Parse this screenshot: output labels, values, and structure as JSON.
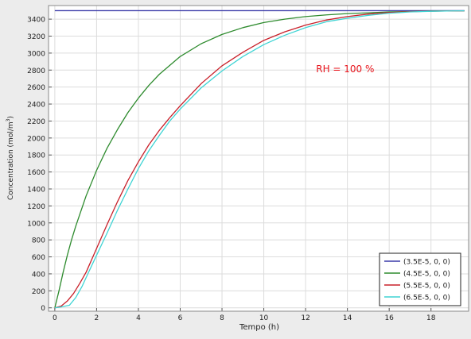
{
  "chart_data": {
    "type": "line",
    "title": "",
    "xlabel": "Tempo (h)",
    "ylabel": "Concentration (mol/m3)",
    "ylabel_base": "Concentration (mol/m",
    "ylabel_sup": "3",
    "ylabel_close": ")",
    "xlim": [
      -0.3,
      19.8
    ],
    "ylim": [
      -40,
      3560
    ],
    "xticks": [
      0,
      2,
      4,
      6,
      8,
      10,
      12,
      14,
      16,
      18
    ],
    "yticks": [
      0,
      200,
      400,
      600,
      800,
      1000,
      1200,
      1400,
      1600,
      1800,
      2000,
      2200,
      2400,
      2600,
      2800,
      3000,
      3200,
      3400
    ],
    "grid": true,
    "legend_position": "bottom-right",
    "annotation": {
      "text": "RH = 100 %",
      "x": 12.5,
      "y": 2775,
      "color": "#e8141c"
    },
    "series": [
      {
        "name": "(3.5E-5,  0,  0)",
        "color": "#3a3aa8",
        "x": [
          0,
          2,
          4,
          6,
          8,
          10,
          12,
          14,
          16,
          18,
          19.6
        ],
        "y": [
          3500,
          3500,
          3500,
          3500,
          3500,
          3500,
          3500,
          3500,
          3500,
          3500,
          3500
        ]
      },
      {
        "name": "(4.5E-5,  0,  0)",
        "color": "#2e8b2e",
        "x": [
          0,
          0.2,
          0.4,
          0.6,
          0.8,
          1,
          1.5,
          2,
          2.5,
          3,
          3.5,
          4,
          4.5,
          5,
          6,
          7,
          8,
          9,
          10,
          11,
          12,
          13,
          14,
          15,
          16,
          17,
          18,
          19,
          19.6
        ],
        "y": [
          0,
          200,
          420,
          620,
          800,
          960,
          1320,
          1620,
          1880,
          2100,
          2300,
          2470,
          2620,
          2750,
          2960,
          3110,
          3220,
          3300,
          3360,
          3400,
          3430,
          3450,
          3465,
          3475,
          3485,
          3490,
          3495,
          3497,
          3498
        ]
      },
      {
        "name": "(5.5E-5,  0,  0)",
        "color": "#c8202a",
        "x": [
          0,
          0.3,
          0.6,
          0.9,
          1.2,
          1.5,
          2,
          2.5,
          3,
          3.5,
          4,
          4.5,
          5,
          5.5,
          6,
          7,
          8,
          9,
          10,
          11,
          12,
          13,
          14,
          15,
          16,
          17,
          18,
          19,
          19.6
        ],
        "y": [
          0,
          20,
          80,
          170,
          290,
          420,
          700,
          980,
          1250,
          1500,
          1720,
          1920,
          2090,
          2240,
          2380,
          2640,
          2850,
          3010,
          3150,
          3250,
          3330,
          3390,
          3430,
          3460,
          3478,
          3488,
          3494,
          3497,
          3498
        ]
      },
      {
        "name": "(6.5E-5,  0,  0)",
        "color": "#3fd4d4",
        "x": [
          0,
          0.3,
          0.7,
          1,
          1.3,
          1.6,
          2,
          2.5,
          3,
          3.5,
          4,
          4.5,
          5,
          5.5,
          6,
          7,
          8,
          9,
          10,
          11,
          12,
          13,
          14,
          15,
          16,
          17,
          18,
          19,
          19.6
        ],
        "y": [
          0,
          10,
          30,
          120,
          250,
          410,
          620,
          880,
          1150,
          1400,
          1640,
          1850,
          2030,
          2200,
          2340,
          2590,
          2790,
          2960,
          3100,
          3210,
          3300,
          3370,
          3410,
          3445,
          3470,
          3485,
          3493,
          3497,
          3498
        ]
      }
    ]
  }
}
